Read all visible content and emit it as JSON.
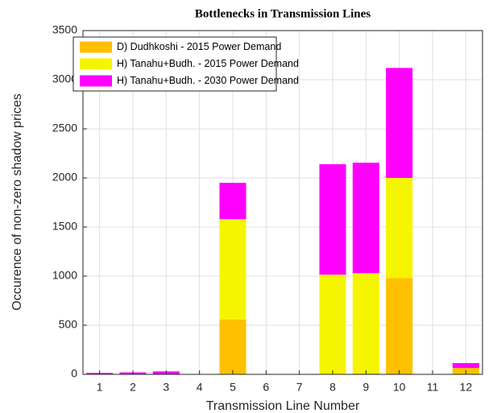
{
  "chart_data": {
    "type": "stacked-bar",
    "title": "Bottlenecks in Transmission Lines",
    "x_label": "Transmission Line Number",
    "y_label": "Occurence of non-zero shadow prices",
    "categories": [
      "1",
      "2",
      "3",
      "4",
      "5",
      "6",
      "7",
      "8",
      "9",
      "10",
      "11",
      "12"
    ],
    "series": [
      {
        "name": "D) Dudhkoshi - 2015 Power Demand",
        "color": "#ffc000",
        "values": [
          0,
          0,
          0,
          0,
          560,
          0,
          0,
          0,
          10,
          980,
          0,
          65
        ]
      },
      {
        "name": "H) Tanahu+Budh. - 2015 Power Demand",
        "color": "#f5f500",
        "values": [
          0,
          0,
          0,
          0,
          1020,
          0,
          0,
          1015,
          1020,
          1020,
          0,
          0
        ]
      },
      {
        "name": "H) Tanahu+Budh. - 2030 Power Demand",
        "color": "#ff00ff",
        "values": [
          15,
          20,
          30,
          3,
          370,
          3,
          3,
          1125,
          1125,
          1120,
          3,
          50
        ]
      }
    ],
    "ylim": [
      0,
      3500
    ],
    "yticks": [
      0,
      500,
      1000,
      1500,
      2000,
      2500,
      3000,
      3500
    ],
    "grid": true,
    "legend": "upper-left"
  }
}
